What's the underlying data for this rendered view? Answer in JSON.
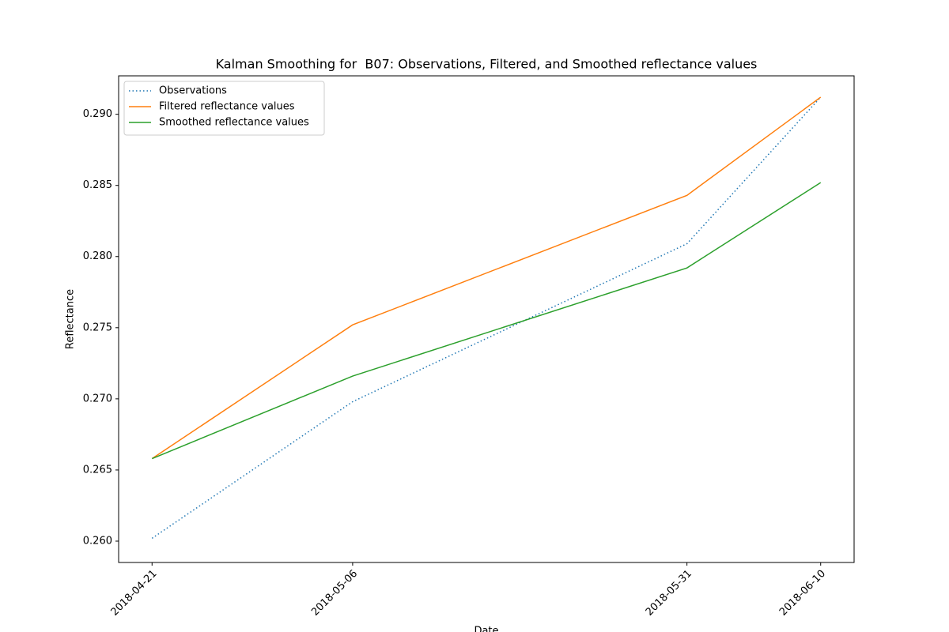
{
  "chart_data": {
    "type": "line",
    "title": "Kalman Smoothing for  B07: Observations, Filtered, and Smoothed reflectance values",
    "x_label": "Date",
    "y_label": "Reflectance",
    "x": [
      "2018-04-21",
      "2018-05-06",
      "2018-05-31",
      "2018-06-10"
    ],
    "xlim": [
      "2018-04-18T12:00Z",
      "2018-06-12T12:00Z"
    ],
    "xticks": [
      "2018-04-21",
      "2018-05-06",
      "2018-05-31",
      "2018-06-10"
    ],
    "ylim": [
      0.2585,
      0.2927
    ],
    "yticks": [
      {
        "value": 0.26,
        "label": "0.260"
      },
      0.265,
      {
        "value": 0.27,
        "label": "0.270"
      },
      0.275,
      {
        "value": 0.28,
        "label": "0.280"
      },
      0.285,
      {
        "value": 0.29,
        "label": "0.290"
      }
    ],
    "legend": "upper left",
    "series": [
      {
        "name": "Observations",
        "color": "#1f77b4",
        "linestyle": "dotted",
        "values": [
          0.2602,
          0.2698,
          0.2809,
          0.2912
        ]
      },
      {
        "name": "Filtered reflectance values",
        "color": "#ff7f0e",
        "linestyle": "solid",
        "values": [
          0.2658,
          0.2752,
          0.2843,
          0.2912
        ]
      },
      {
        "name": "Smoothed reflectance values",
        "color": "#2ca02c",
        "linestyle": "solid",
        "values": [
          0.2658,
          0.2716,
          0.2792,
          0.2852
        ]
      }
    ]
  }
}
